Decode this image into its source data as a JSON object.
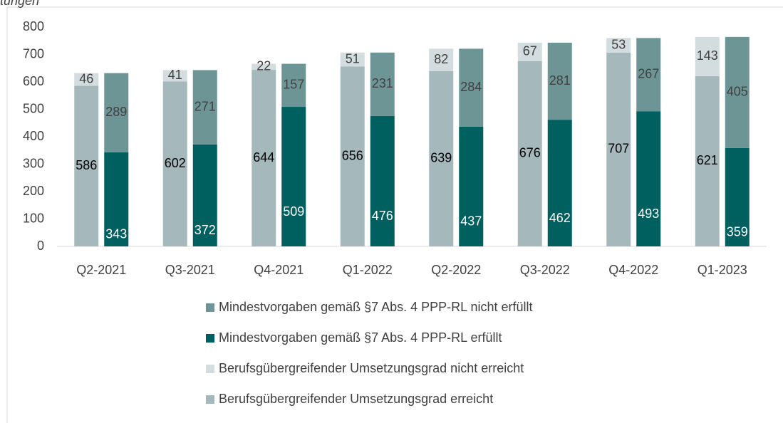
{
  "chart_data": {
    "type": "grouped_stacked_bar",
    "title": "tungen",
    "categories": [
      "Q2-2021",
      "Q3-2021",
      "Q4-2021",
      "Q1-2022",
      "Q2-2022",
      "Q3-2022",
      "Q4-2022",
      "Q1-2023"
    ],
    "series": [
      {
        "name": "Berufsgübergreifender Umsetzungsgrad erreicht",
        "color": "#a5b8bb",
        "label_color": "#000000",
        "stack": 0,
        "values": [
          586,
          602,
          644,
          656,
          639,
          676,
          707,
          621
        ]
      },
      {
        "name": "Berufsgübergreifender Umsetzungsgrad nicht erreicht",
        "color": "#d3dcde",
        "label_color": "#404040",
        "stack": 0,
        "values": [
          46,
          41,
          22,
          51,
          82,
          67,
          53,
          143
        ]
      },
      {
        "name": "Mindestvorgaben gemäß §7 Abs. 4 PPP-RL erfüllt",
        "color": "#005f5f",
        "label_color": "#ffffff",
        "stack": 1,
        "values": [
          343,
          372,
          509,
          476,
          437,
          462,
          493,
          359
        ]
      },
      {
        "name": "Mindestvorgaben gemäß §7 Abs. 4 PPP-RL nicht erfüllt",
        "color": "#6e9596",
        "label_color": "#404040",
        "stack": 1,
        "values": [
          289,
          271,
          157,
          231,
          284,
          281,
          267,
          405
        ]
      }
    ],
    "ylim": [
      0,
      800
    ],
    "yticks": [
      0,
      100,
      200,
      300,
      400,
      500,
      600,
      700,
      800
    ],
    "grid": false
  }
}
